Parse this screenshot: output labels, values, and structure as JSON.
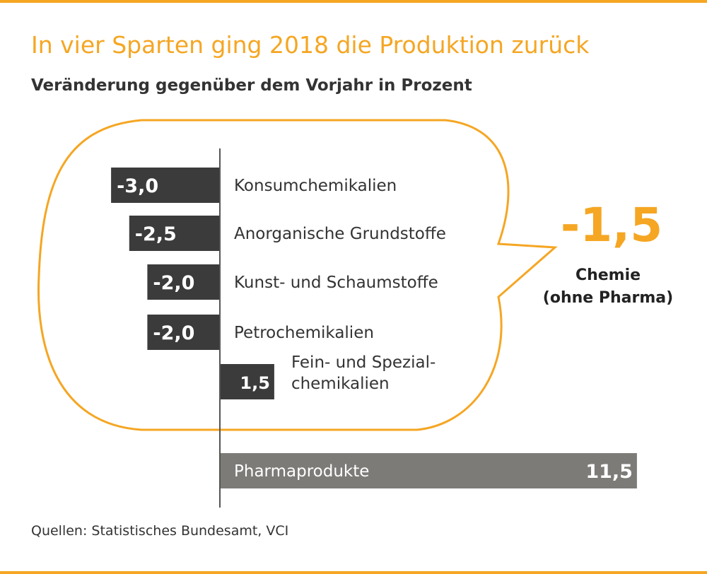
{
  "title": "In vier Sparten ging 2018 die Produktion zurück",
  "subtitle": "Veränderung gegenüber dem Vorjahr in Prozent",
  "chart_data": {
    "type": "bar",
    "orientation": "horizontal",
    "title": "In vier Sparten ging 2018 die Produktion zurück",
    "subtitle": "Veränderung gegenüber dem Vorjahr in Prozent",
    "categories": [
      "Konsumchemikalien",
      "Anorganische Grundstoffe",
      "Kunst- und Schaumstoffe",
      "Petrochemikalien",
      "Fein- und Spezial-\nchemikalien",
      "Pharmaprodukte"
    ],
    "values": [
      -3.0,
      -2.5,
      -2.0,
      -2.0,
      1.5,
      11.5
    ],
    "value_labels": [
      "-3,0",
      "-2,5",
      "-2,0",
      "-2,0",
      "1,5",
      "11,5"
    ],
    "xlim": [
      -3.2,
      12
    ],
    "grid": false,
    "colors": {
      "bars": "#3b3b3b",
      "pharma_bar": "#7d7b78",
      "accent": "#f5a623"
    },
    "callout": {
      "value": "-1,5",
      "label_line1": "Chemie",
      "label_line2": "(ohne Pharma)"
    }
  },
  "source": "Quellen: Statistisches Bundesamt, VCI"
}
